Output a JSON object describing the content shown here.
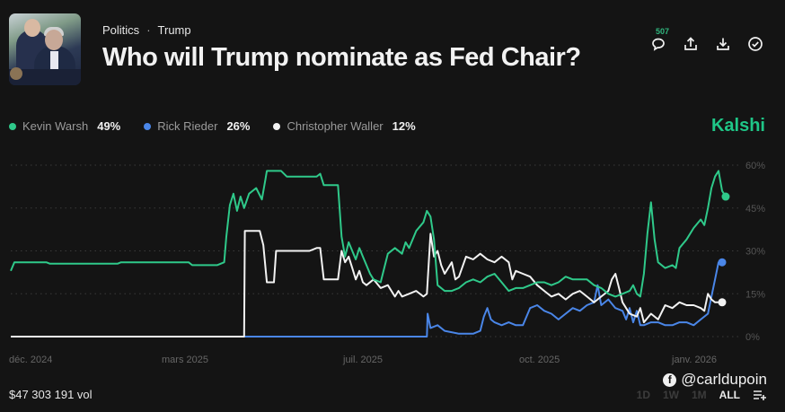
{
  "header": {
    "breadcrumb": [
      "Politics",
      "Trump"
    ],
    "breadcrumb_separator": "·",
    "title": "Who will Trump nominate as Fed Chair?",
    "comment_count": "507",
    "actions": [
      "comment-icon",
      "share-icon",
      "download-icon",
      "check-circle-icon"
    ]
  },
  "brand": {
    "name": "Kalshi",
    "color": "#1fc687"
  },
  "legend": [
    {
      "name": "Kevin Warsh",
      "value": "49%",
      "color": "#2fc98a"
    },
    {
      "name": "Rick Rieder",
      "value": "26%",
      "color": "#4a86e8"
    },
    {
      "name": "Christopher Waller",
      "value": "12%",
      "color": "#f2f2f2"
    }
  ],
  "footer": {
    "volume": "$47 303 191 vol",
    "watermark": "@carldupoin",
    "ranges": [
      "1D",
      "1W",
      "1M",
      "ALL"
    ],
    "active_range": "ALL"
  },
  "chart_data": {
    "type": "line",
    "title": "Who will Trump nominate as Fed Chair?",
    "xlabel": "",
    "ylabel": "",
    "x_ticks": [
      "déc. 2024",
      "mars 2025",
      "juil. 2025",
      "oct. 2025",
      "janv. 2026"
    ],
    "y_ticks": [
      "0%",
      "15%",
      "30%",
      "45%",
      "60%"
    ],
    "ylim": [
      0,
      60
    ],
    "xlim": [
      0,
      100
    ],
    "grid": true,
    "legend_position": "top-left",
    "series": [
      {
        "name": "Kevin Warsh",
        "color": "#2fc98a",
        "points": [
          [
            0,
            23
          ],
          [
            0.5,
            26
          ],
          [
            5,
            26
          ],
          [
            5.5,
            25.5
          ],
          [
            15,
            25.5
          ],
          [
            15.5,
            26
          ],
          [
            25,
            26
          ],
          [
            25.5,
            25
          ],
          [
            29,
            25
          ],
          [
            30,
            26
          ],
          [
            30.3,
            35
          ],
          [
            30.8,
            46
          ],
          [
            31.3,
            50
          ],
          [
            31.8,
            44
          ],
          [
            32.3,
            49
          ],
          [
            32.8,
            45
          ],
          [
            33.5,
            50
          ],
          [
            34.5,
            52
          ],
          [
            35.3,
            48
          ],
          [
            35.8,
            55
          ],
          [
            36,
            58
          ],
          [
            38,
            58
          ],
          [
            38.8,
            56
          ],
          [
            43,
            56
          ],
          [
            43.5,
            57
          ],
          [
            44,
            53
          ],
          [
            46,
            53
          ],
          [
            46.5,
            35
          ],
          [
            47,
            28
          ],
          [
            47.5,
            33
          ],
          [
            48,
            30
          ],
          [
            48.5,
            27
          ],
          [
            49,
            31
          ],
          [
            49.5,
            28
          ],
          [
            50,
            25
          ],
          [
            50.5,
            22
          ],
          [
            51,
            20
          ],
          [
            52,
            19
          ],
          [
            53,
            29
          ],
          [
            54,
            31
          ],
          [
            55,
            29
          ],
          [
            55.5,
            33
          ],
          [
            56,
            31
          ],
          [
            57,
            37
          ],
          [
            58,
            40
          ],
          [
            58.5,
            44
          ],
          [
            59,
            42
          ],
          [
            59.5,
            34
          ],
          [
            60,
            18
          ],
          [
            61,
            16
          ],
          [
            62,
            16
          ],
          [
            63,
            17
          ],
          [
            64,
            19
          ],
          [
            65,
            20
          ],
          [
            66,
            19
          ],
          [
            67,
            21
          ],
          [
            68,
            22
          ],
          [
            69,
            19
          ],
          [
            70,
            16
          ],
          [
            71,
            17
          ],
          [
            72,
            17
          ],
          [
            73,
            18
          ],
          [
            74,
            19
          ],
          [
            75,
            19
          ],
          [
            76,
            18
          ],
          [
            77,
            19
          ],
          [
            78,
            21
          ],
          [
            79,
            20
          ],
          [
            80,
            20
          ],
          [
            81,
            20
          ],
          [
            82,
            18
          ],
          [
            83,
            17
          ],
          [
            84,
            15
          ],
          [
            85,
            14
          ],
          [
            86,
            15
          ],
          [
            87,
            16
          ],
          [
            87.5,
            18
          ],
          [
            88,
            15
          ],
          [
            88.5,
            14
          ],
          [
            89,
            22
          ],
          [
            89.5,
            36
          ],
          [
            90,
            47
          ],
          [
            90.5,
            34
          ],
          [
            91,
            26
          ],
          [
            92,
            24
          ],
          [
            93,
            25
          ],
          [
            93.5,
            24
          ],
          [
            94,
            31
          ],
          [
            95,
            34
          ],
          [
            96,
            38
          ],
          [
            97,
            41
          ],
          [
            97.5,
            39
          ],
          [
            98,
            45
          ],
          [
            98.5,
            52
          ],
          [
            99,
            56
          ],
          [
            99.5,
            58
          ],
          [
            100,
            51
          ],
          [
            100.5,
            49
          ]
        ]
      },
      {
        "name": "Rick Rieder",
        "color": "#4a86e8",
        "points": [
          [
            0,
            0
          ],
          [
            58.5,
            0
          ],
          [
            58.6,
            8
          ],
          [
            59,
            3
          ],
          [
            60,
            4
          ],
          [
            61,
            2
          ],
          [
            63,
            1
          ],
          [
            65,
            1
          ],
          [
            66,
            2
          ],
          [
            66.5,
            7
          ],
          [
            67,
            10
          ],
          [
            67.5,
            6
          ],
          [
            68,
            5
          ],
          [
            69,
            4
          ],
          [
            70,
            5
          ],
          [
            71,
            4
          ],
          [
            72,
            4
          ],
          [
            73,
            10
          ],
          [
            74,
            11
          ],
          [
            75,
            9
          ],
          [
            76,
            8
          ],
          [
            77,
            6
          ],
          [
            78,
            8
          ],
          [
            79,
            10
          ],
          [
            80,
            9
          ],
          [
            81,
            11
          ],
          [
            82,
            12
          ],
          [
            82.5,
            18
          ],
          [
            83,
            11
          ],
          [
            84,
            13
          ],
          [
            85,
            10
          ],
          [
            86,
            9
          ],
          [
            86.5,
            6
          ],
          [
            87,
            10
          ],
          [
            87.5,
            5
          ],
          [
            88,
            9
          ],
          [
            88.5,
            4
          ],
          [
            89,
            4
          ],
          [
            90,
            5
          ],
          [
            91,
            5
          ],
          [
            92,
            4
          ],
          [
            93,
            4
          ],
          [
            94,
            5
          ],
          [
            95,
            5
          ],
          [
            96,
            4
          ],
          [
            97,
            6
          ],
          [
            98,
            8
          ],
          [
            98.5,
            14
          ],
          [
            99,
            20
          ],
          [
            99.5,
            26
          ],
          [
            100,
            26
          ]
        ]
      },
      {
        "name": "Christopher Waller",
        "color": "#f2f2f2",
        "points": [
          [
            0,
            0
          ],
          [
            32.8,
            0
          ],
          [
            32.9,
            37
          ],
          [
            35,
            37
          ],
          [
            35.5,
            32
          ],
          [
            36,
            19
          ],
          [
            37,
            19
          ],
          [
            37.3,
            30
          ],
          [
            38,
            30
          ],
          [
            42,
            30
          ],
          [
            43,
            31
          ],
          [
            43.5,
            31
          ],
          [
            44,
            20
          ],
          [
            45,
            20
          ],
          [
            46,
            20
          ],
          [
            46.5,
            30
          ],
          [
            47,
            26
          ],
          [
            47.5,
            28
          ],
          [
            48,
            24
          ],
          [
            48.5,
            20
          ],
          [
            49,
            23
          ],
          [
            49.5,
            19
          ],
          [
            50,
            18
          ],
          [
            51,
            20
          ],
          [
            52,
            17
          ],
          [
            53,
            18
          ],
          [
            54,
            14
          ],
          [
            54.5,
            16
          ],
          [
            55,
            14
          ],
          [
            56,
            15
          ],
          [
            57,
            16
          ],
          [
            58,
            14
          ],
          [
            58.5,
            15
          ],
          [
            59,
            36
          ],
          [
            59.5,
            28
          ],
          [
            60,
            30
          ],
          [
            60.5,
            25
          ],
          [
            61,
            22
          ],
          [
            62,
            26
          ],
          [
            62.5,
            20
          ],
          [
            63,
            21
          ],
          [
            64,
            28
          ],
          [
            65,
            27
          ],
          [
            66,
            29
          ],
          [
            67,
            27
          ],
          [
            68,
            26
          ],
          [
            69,
            28
          ],
          [
            70,
            26
          ],
          [
            70.5,
            20
          ],
          [
            71,
            23
          ],
          [
            72,
            22
          ],
          [
            73,
            21
          ],
          [
            74,
            18
          ],
          [
            75,
            16
          ],
          [
            76,
            14
          ],
          [
            77,
            15
          ],
          [
            78,
            13
          ],
          [
            79,
            15
          ],
          [
            80,
            16
          ],
          [
            81,
            14
          ],
          [
            82,
            12
          ],
          [
            83,
            14
          ],
          [
            84,
            16
          ],
          [
            84.5,
            20
          ],
          [
            85,
            22
          ],
          [
            85.5,
            17
          ],
          [
            86,
            12
          ],
          [
            87,
            8
          ],
          [
            88,
            7
          ],
          [
            88.5,
            10
          ],
          [
            89,
            5
          ],
          [
            90,
            8
          ],
          [
            91,
            6
          ],
          [
            92,
            11
          ],
          [
            93,
            10
          ],
          [
            94,
            12
          ],
          [
            95,
            11
          ],
          [
            96,
            11
          ],
          [
            97,
            10
          ],
          [
            97.5,
            9
          ],
          [
            98,
            15
          ],
          [
            98.5,
            13
          ],
          [
            99,
            12
          ],
          [
            100,
            12
          ]
        ]
      }
    ]
  }
}
